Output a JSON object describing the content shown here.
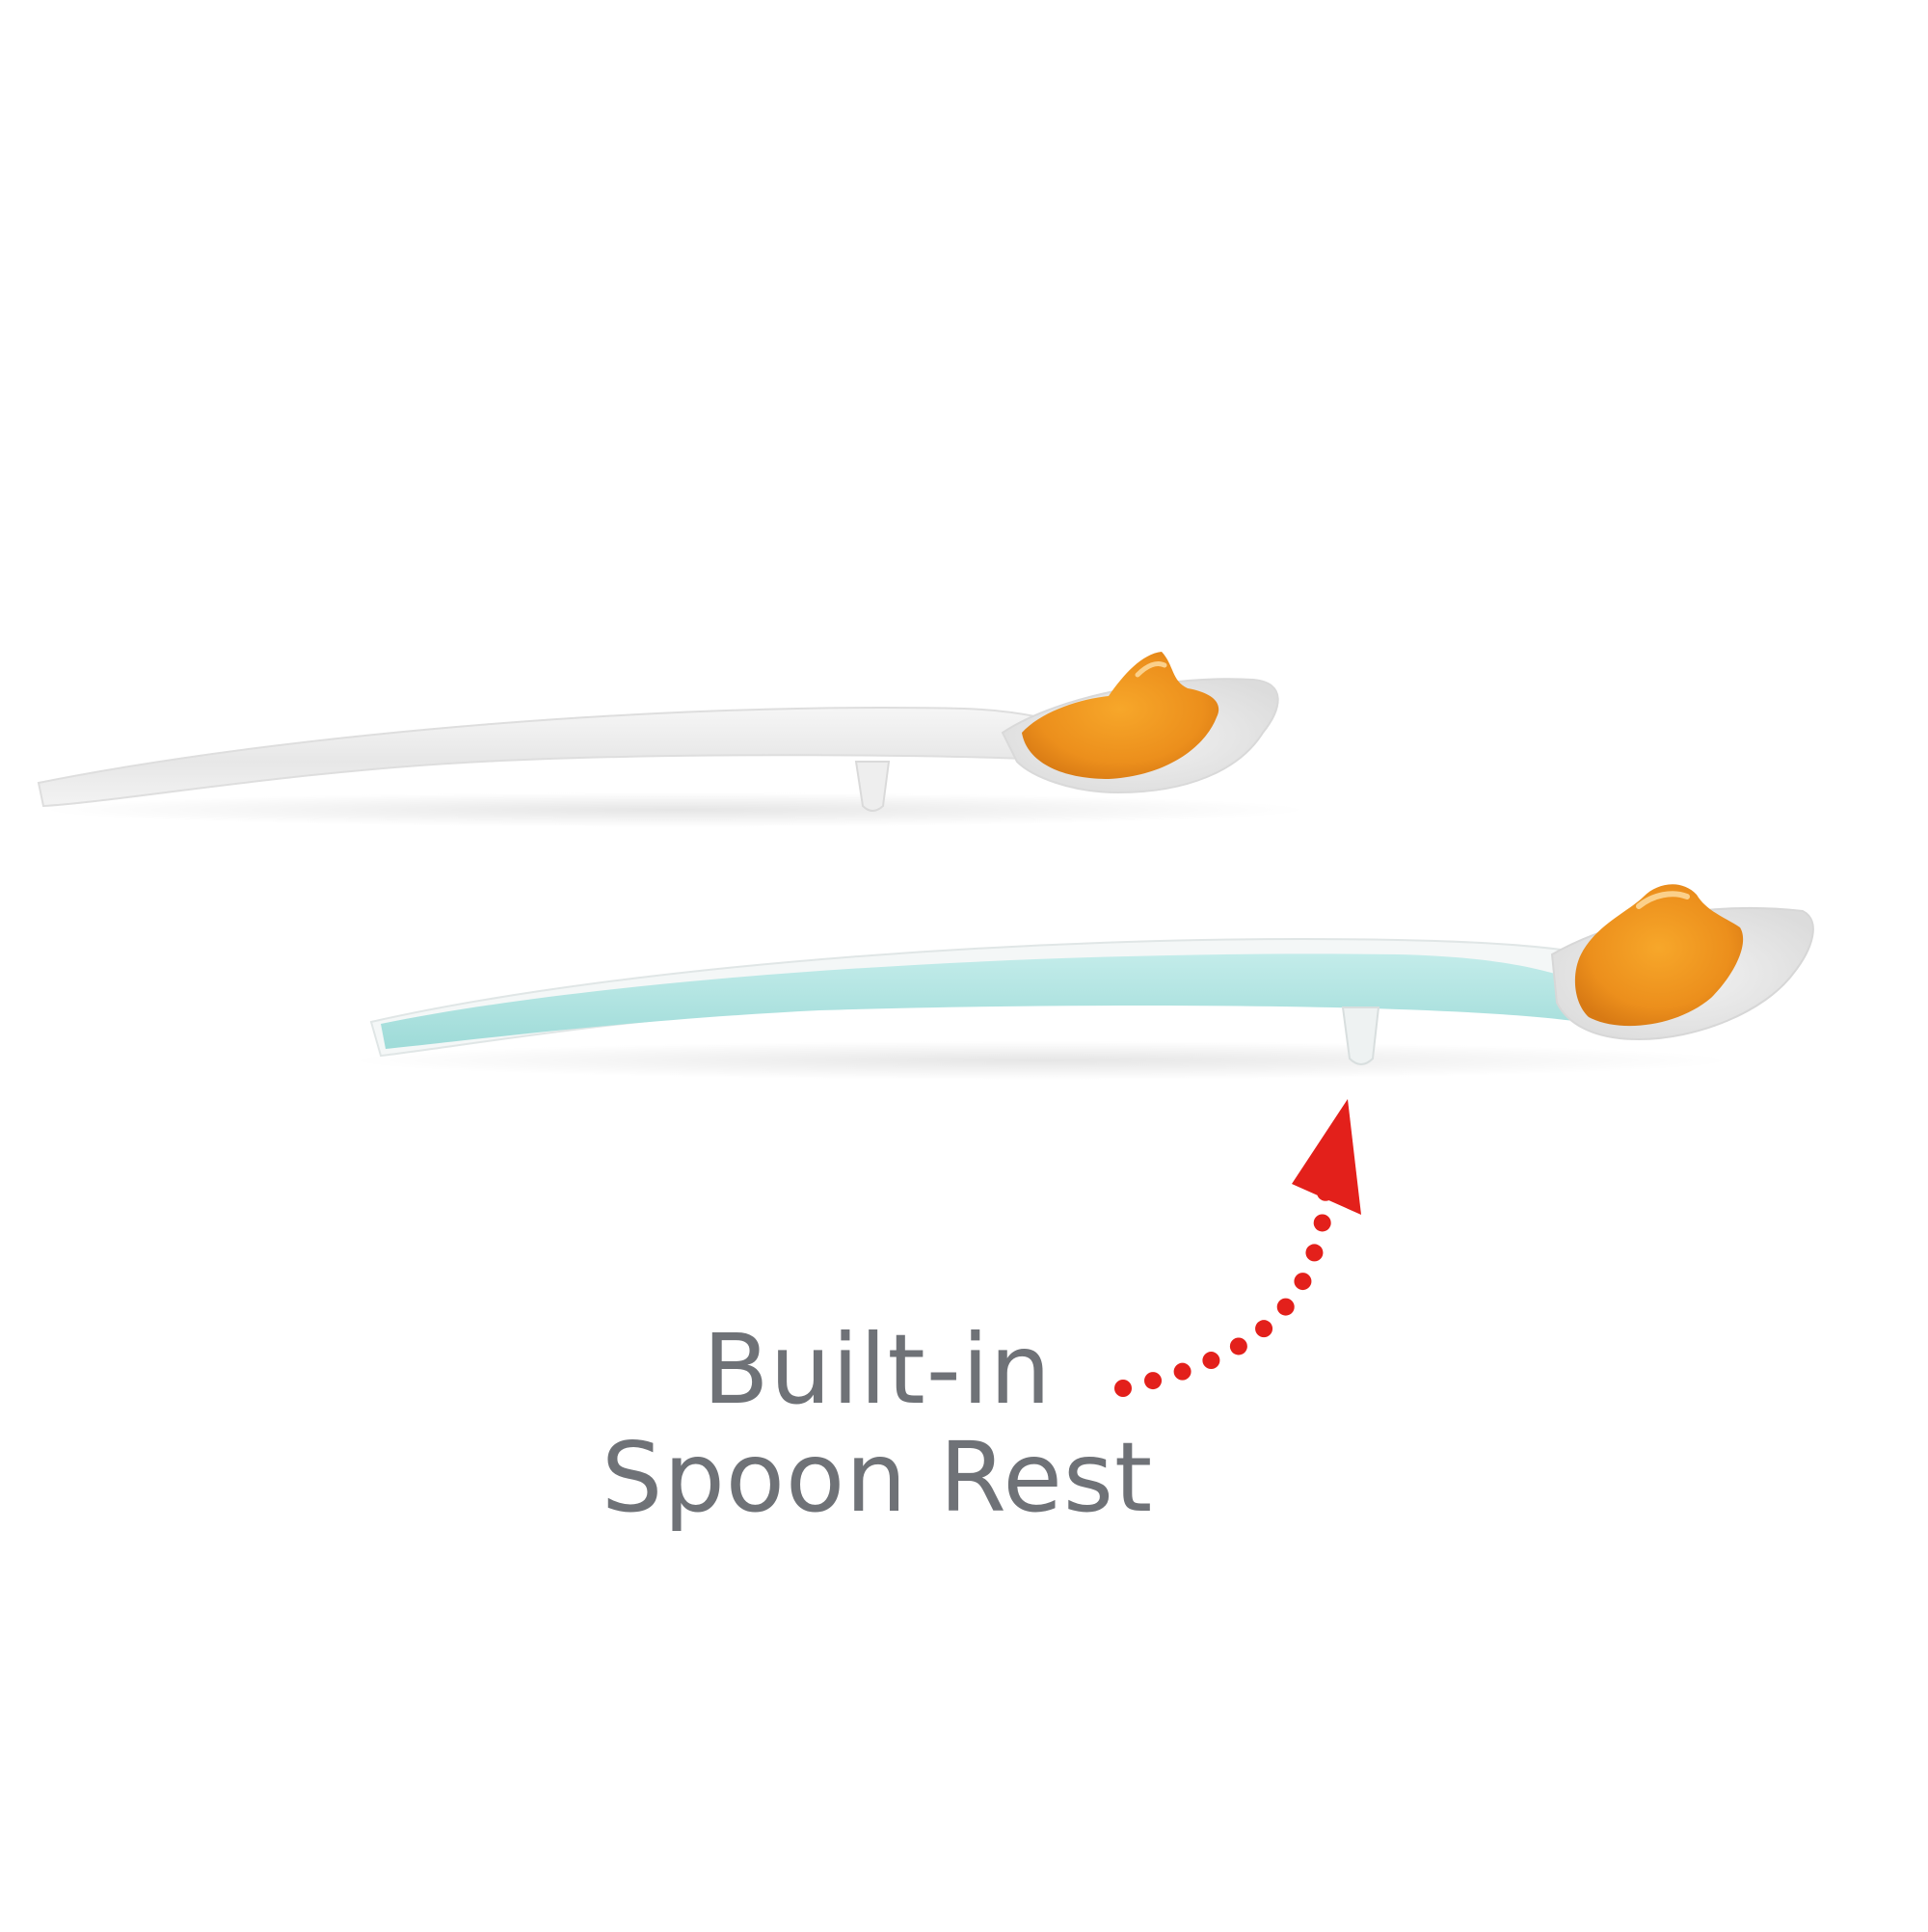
{
  "caption": {
    "line1": "Built-in",
    "line2": "Spoon Rest"
  },
  "colors": {
    "background": "#ffffff",
    "caption_text": "#6f7277",
    "arrow": "#e3201b",
    "handle_white": "#eeeeee",
    "handle_aqua": "#a9e3e0",
    "food_orange": "#ef9a22"
  },
  "icons": {
    "arrow": "dotted-curved-arrow"
  }
}
